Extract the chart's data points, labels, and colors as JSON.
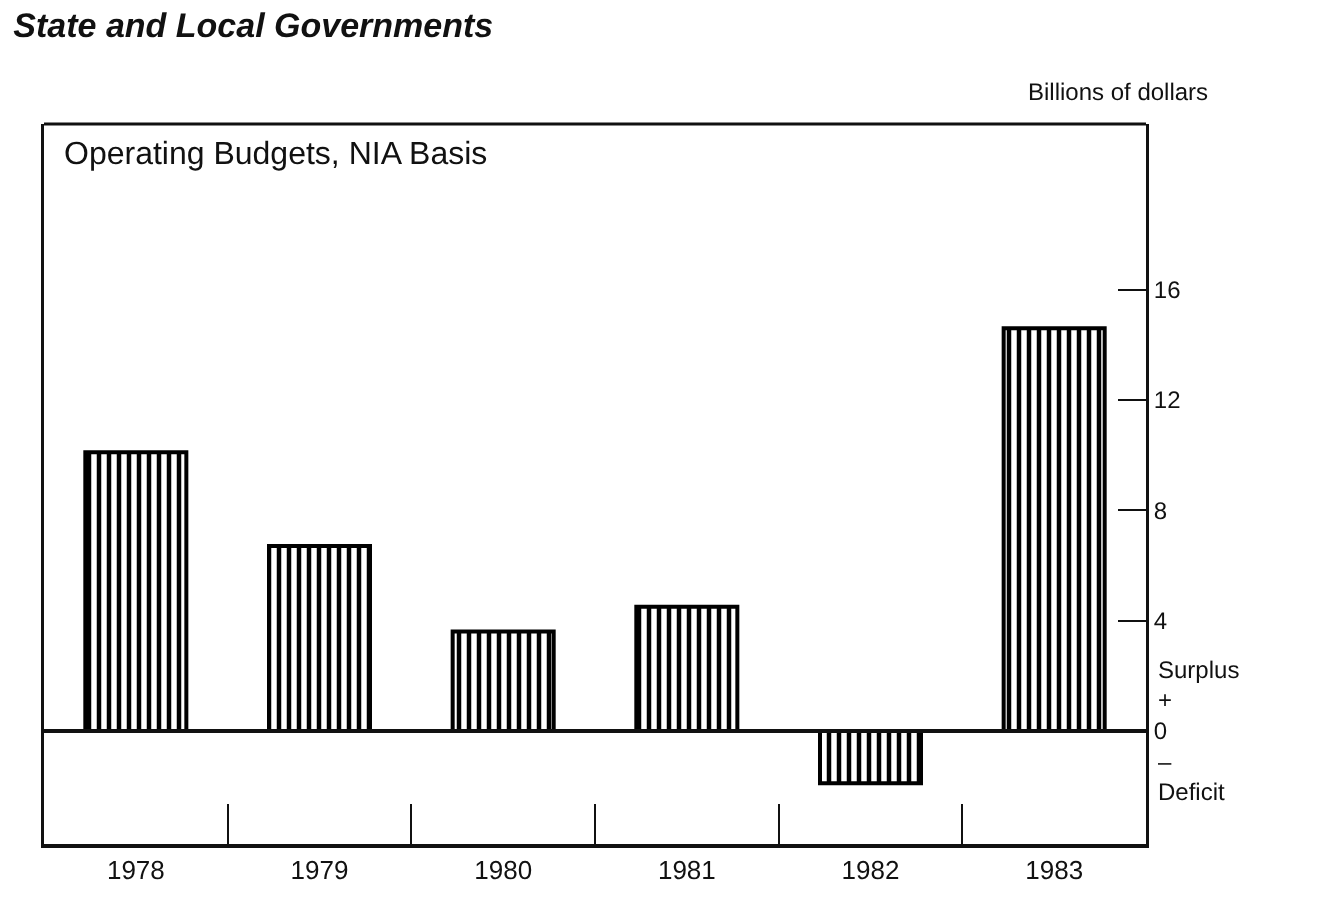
{
  "chart_data": {
    "type": "bar",
    "title": "State and Local Governments",
    "subtitle": "Operating Budgets, NIA Basis",
    "ylabel": "Billions of dollars",
    "categories": [
      "1978",
      "1979",
      "1980",
      "1981",
      "1982",
      "1983"
    ],
    "values": [
      10.1,
      6.7,
      3.6,
      4.5,
      -1.9,
      14.6
    ],
    "color": "#000000",
    "ylim": [
      -4.1,
      22
    ],
    "yticks": [
      0,
      4,
      8,
      12,
      16
    ],
    "ref_lines": [
      {
        "axis": "y",
        "value": 0
      }
    ],
    "annotations": [
      "Surplus",
      "+",
      "–",
      "Deficit"
    ],
    "grid": false,
    "legend": false
  }
}
